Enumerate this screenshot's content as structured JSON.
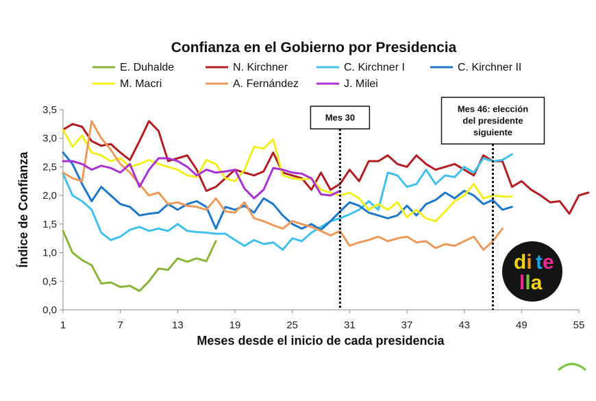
{
  "chart_data": {
    "type": "line",
    "title": "Confianza en el Gobierno por Presidencia",
    "xlabel": "Meses desde el inicio de cada presidencia",
    "ylabel": "Índice de Confianza",
    "xlim": [
      1,
      55
    ],
    "ylim": [
      0,
      3.5
    ],
    "x_ticks": [
      1,
      7,
      13,
      19,
      25,
      31,
      37,
      43,
      49,
      55
    ],
    "x_tick_labels": [
      "1",
      "7",
      "13",
      "19",
      "25",
      "31",
      "37",
      "43",
      "49",
      "55"
    ],
    "y_ticks": [
      0,
      0.5,
      1,
      1.5,
      2,
      2.5,
      3,
      3.5
    ],
    "y_tick_labels": [
      "0,0",
      "0,5",
      "1,0",
      "1,5",
      "2,0",
      "2,5",
      "3,0",
      "3,5"
    ],
    "grid": false,
    "legend_position": "top",
    "series": [
      {
        "name": "E. Duhalde",
        "color": "#8DB43A",
        "start_month": 1,
        "values": [
          1.38,
          1.0,
          0.87,
          0.78,
          0.46,
          0.48,
          0.4,
          0.42,
          0.33,
          0.5,
          0.72,
          0.7,
          0.9,
          0.84,
          0.9,
          0.85,
          1.2
        ]
      },
      {
        "name": "N. Kirchner",
        "color": "#B11E23",
        "start_month": 1,
        "values": [
          3.15,
          3.25,
          3.2,
          2.95,
          2.87,
          2.9,
          2.75,
          2.62,
          2.95,
          3.3,
          3.13,
          2.6,
          2.65,
          2.7,
          2.45,
          2.08,
          2.15,
          2.3,
          2.45,
          2.4,
          2.35,
          2.42,
          2.75,
          2.4,
          2.35,
          2.3,
          2.1,
          2.4,
          2.1,
          2.2,
          2.45,
          2.25,
          2.6,
          2.6,
          2.7,
          2.55,
          2.5,
          2.7,
          2.55,
          2.45,
          2.5,
          2.55,
          2.45,
          2.35,
          2.7,
          2.6,
          2.6,
          2.15,
          2.25,
          2.1,
          2.0,
          1.88,
          1.9,
          1.68,
          2.0,
          2.05
        ]
      },
      {
        "name": "C. Kirchner I",
        "color": "#41C0EC",
        "start_month": 1,
        "values": [
          2.38,
          2.0,
          1.9,
          1.75,
          1.35,
          1.22,
          1.28,
          1.4,
          1.45,
          1.38,
          1.42,
          1.38,
          1.5,
          1.38,
          1.36,
          1.35,
          1.33,
          1.33,
          1.22,
          1.12,
          1.22,
          1.15,
          1.18,
          1.05,
          1.25,
          1.2,
          1.35,
          1.45,
          1.55,
          1.6,
          1.67,
          1.75,
          1.9,
          1.75,
          2.4,
          2.35,
          2.15,
          2.2,
          2.45,
          2.2,
          2.35,
          2.32,
          2.5,
          2.4,
          2.65,
          2.6,
          2.62,
          2.72
        ]
      },
      {
        "name": "C. Kirchner II",
        "color": "#1F77C7",
        "start_month": 1,
        "values": [
          2.75,
          2.55,
          2.2,
          1.9,
          2.15,
          2.0,
          1.85,
          1.8,
          1.65,
          1.68,
          1.7,
          1.85,
          1.75,
          1.85,
          1.9,
          1.8,
          1.42,
          1.8,
          1.75,
          1.82,
          1.7,
          1.95,
          1.85,
          1.65,
          1.5,
          1.42,
          1.5,
          1.4,
          1.55,
          1.72,
          1.88,
          1.82,
          1.7,
          1.65,
          1.6,
          1.65,
          1.82,
          1.65,
          1.85,
          1.92,
          2.05,
          1.95,
          2.08,
          2.0,
          1.85,
          1.92,
          1.75,
          1.8
        ]
      },
      {
        "name": "M. Macri",
        "color": "#F2F01F",
        "start_month": 1,
        "values": [
          3.15,
          2.85,
          3.05,
          2.75,
          2.7,
          2.6,
          2.65,
          2.5,
          2.55,
          2.62,
          2.55,
          2.5,
          2.45,
          2.35,
          2.32,
          2.62,
          2.55,
          2.3,
          2.25,
          2.45,
          2.85,
          2.82,
          2.98,
          2.35,
          2.3,
          2.28,
          2.3,
          2.1,
          2.05,
          2.0,
          2.05,
          1.95,
          1.75,
          1.85,
          1.75,
          1.88,
          1.62,
          1.75,
          1.6,
          1.55,
          1.72,
          1.9,
          2.0,
          2.2,
          1.95,
          2.0,
          1.98,
          1.98
        ]
      },
      {
        "name": "A. Fernández",
        "color": "#EB9A5B",
        "start_month": 1,
        "values": [
          2.4,
          2.3,
          2.25,
          3.3,
          3.0,
          2.8,
          2.55,
          2.4,
          2.2,
          2.0,
          2.05,
          1.85,
          1.88,
          1.82,
          1.8,
          1.75,
          1.95,
          1.72,
          1.7,
          1.88,
          1.6,
          1.55,
          1.48,
          1.42,
          1.55,
          1.5,
          1.45,
          1.38,
          1.3,
          1.38,
          1.12,
          1.18,
          1.22,
          1.28,
          1.2,
          1.25,
          1.28,
          1.18,
          1.2,
          1.08,
          1.15,
          1.12,
          1.2,
          1.28,
          1.05,
          1.2,
          1.42
        ]
      },
      {
        "name": "J. Milei",
        "color": "#A833D2",
        "start_month": 1,
        "values": [
          2.6,
          2.6,
          2.55,
          2.45,
          2.52,
          2.48,
          2.4,
          2.55,
          2.15,
          2.45,
          2.65,
          2.65,
          2.6,
          2.5,
          2.35,
          2.45,
          2.4,
          2.42,
          2.45,
          2.12,
          1.95,
          2.1,
          2.48,
          2.45,
          2.4,
          2.38,
          2.3,
          2.02,
          2.0,
          2.08
        ]
      }
    ],
    "annotations": [
      {
        "x": 30,
        "lines": [
          "Mes 30"
        ]
      },
      {
        "x": 46,
        "lines": [
          "Mes 46: elección",
          "del presidente",
          "siguiente"
        ]
      }
    ]
  },
  "logo": {
    "lines": [
      "di",
      "te",
      "lla"
    ],
    "background": "#141414",
    "colors": [
      "#F3D21B",
      "#1FA3DE",
      "#EC2A8F",
      "#F39A1E",
      "#7BC142"
    ]
  }
}
